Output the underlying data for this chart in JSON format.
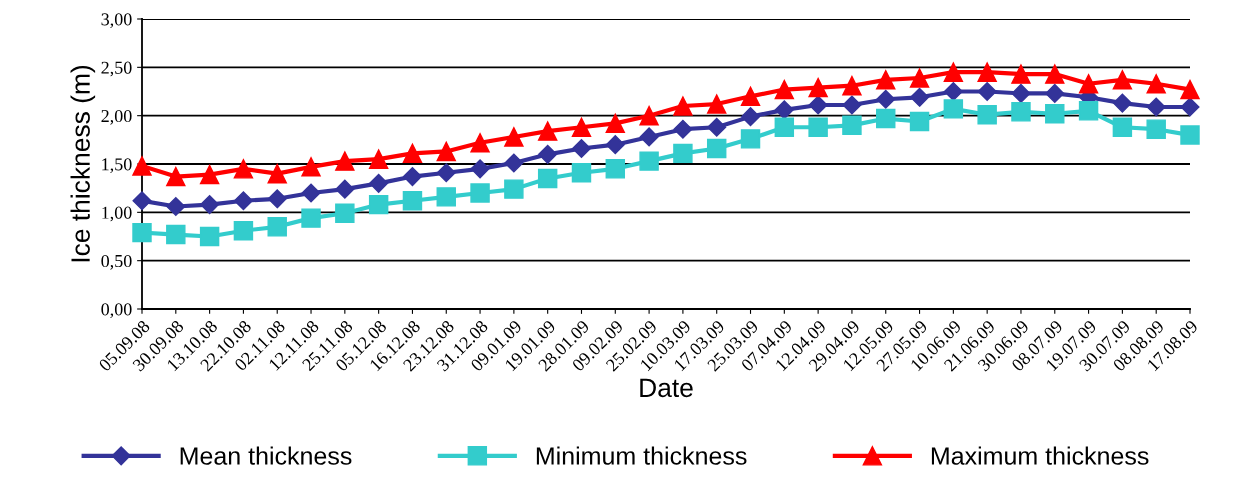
{
  "chart_data": {
    "type": "line",
    "xlabel": "Date",
    "ylabel": "Ice thickness (m)",
    "categories": [
      "05.09.08",
      "30.09.08",
      "13.10.08",
      "22.10.08",
      "02.11.08",
      "12.11.08",
      "25.11.08",
      "05.12.08",
      "16.12.08",
      "23.12.08",
      "31.12.08",
      "09.01.09",
      "19.01.09",
      "28.01.09",
      "09.02.09",
      "25.02.09",
      "10.03.09",
      "17.03.09",
      "25.03.09",
      "07.04.09",
      "12.04.09",
      "29.04.09",
      "12.05.09",
      "27.05.09",
      "10.06.09",
      "21.06.09",
      "30.06.09",
      "08.07.09",
      "19.07.09",
      "30.07.09",
      "08.08.09",
      "17.08.09"
    ],
    "series": [
      {
        "name": "Mean thickness",
        "color": "#333399",
        "marker": "diamond",
        "values": [
          1.12,
          1.06,
          1.08,
          1.12,
          1.14,
          1.2,
          1.24,
          1.3,
          1.37,
          1.41,
          1.45,
          1.51,
          1.6,
          1.66,
          1.7,
          1.78,
          1.86,
          1.88,
          1.99,
          2.06,
          2.11,
          2.11,
          2.17,
          2.19,
          2.25,
          2.25,
          2.23,
          2.23,
          2.19,
          2.13,
          2.09,
          2.09
        ]
      },
      {
        "name": "Minimum thickness",
        "color": "#33cccc",
        "marker": "square",
        "values": [
          0.79,
          0.77,
          0.75,
          0.81,
          0.85,
          0.94,
          0.99,
          1.08,
          1.12,
          1.16,
          1.2,
          1.24,
          1.35,
          1.41,
          1.45,
          1.53,
          1.61,
          1.66,
          1.76,
          1.88,
          1.88,
          1.9,
          1.97,
          1.94,
          2.07,
          2.01,
          2.04,
          2.02,
          2.05,
          1.88,
          1.86,
          1.8
        ]
      },
      {
        "name": "Maximum thickness",
        "color": "#ff0000",
        "marker": "triangle",
        "values": [
          1.48,
          1.37,
          1.39,
          1.45,
          1.4,
          1.47,
          1.53,
          1.55,
          1.61,
          1.63,
          1.72,
          1.78,
          1.84,
          1.88,
          1.92,
          2.0,
          2.1,
          2.12,
          2.2,
          2.27,
          2.29,
          2.31,
          2.37,
          2.39,
          2.45,
          2.45,
          2.43,
          2.43,
          2.33,
          2.37,
          2.33,
          2.27
        ]
      }
    ],
    "ylim": [
      0,
      3
    ],
    "yticks": [
      {
        "value": 0,
        "label": "0,00"
      },
      {
        "value": 0.5,
        "label": "0,50"
      },
      {
        "value": 1,
        "label": "1,00"
      },
      {
        "value": 1.5,
        "label": "1,50"
      },
      {
        "value": 2,
        "label": "2,00"
      },
      {
        "value": 2.5,
        "label": "2,50"
      },
      {
        "value": 3,
        "label": "3,00"
      }
    ],
    "grid": "y",
    "legend": "bottom"
  }
}
